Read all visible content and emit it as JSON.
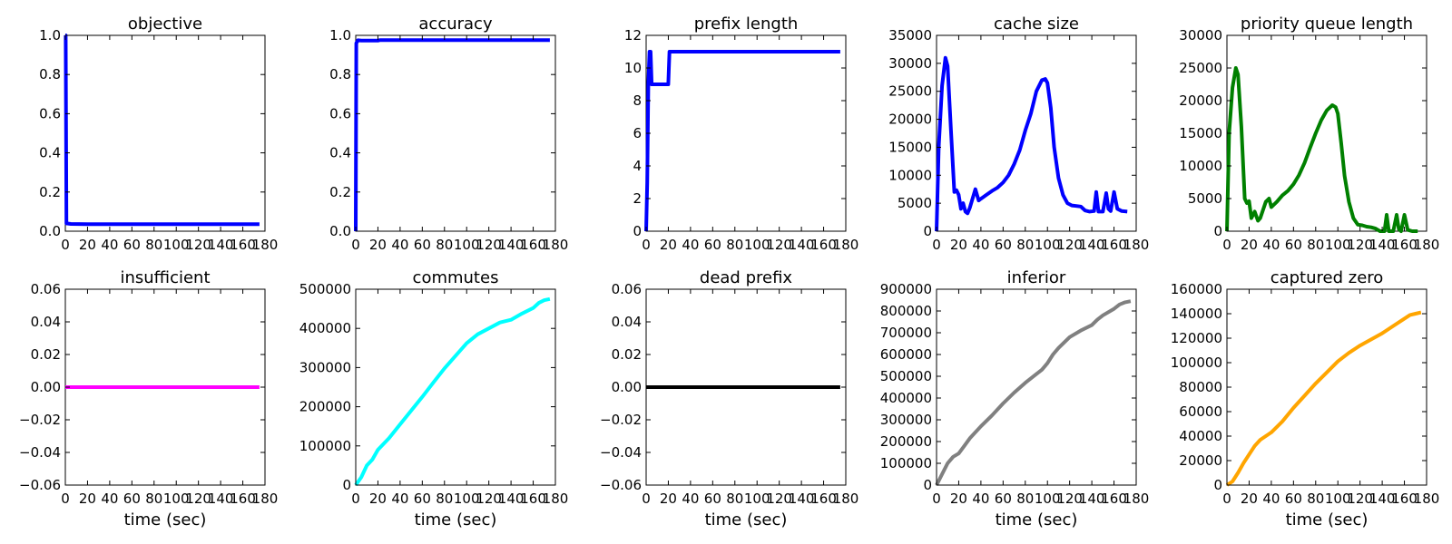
{
  "chart_data": [
    {
      "type": "line",
      "title": "objective",
      "xlabel": "",
      "ylabel": "",
      "xlim": [
        0,
        180
      ],
      "ylim": [
        0,
        1.0
      ],
      "xticks": [
        "0",
        "20",
        "40",
        "60",
        "80",
        "100",
        "120",
        "140",
        "160",
        "180"
      ],
      "yticks": [
        "0.0",
        "0.2",
        "0.4",
        "0.6",
        "0.8",
        "1.0"
      ],
      "color": "#0000ff",
      "x": [
        0,
        0.3,
        1,
        5,
        20,
        60,
        120,
        175
      ],
      "y": [
        1.0,
        1.0,
        0.04,
        0.037,
        0.036,
        0.036,
        0.036,
        0.036
      ]
    },
    {
      "type": "line",
      "title": "accuracy",
      "xlabel": "",
      "ylabel": "",
      "xlim": [
        0,
        180
      ],
      "ylim": [
        0,
        1.0
      ],
      "xticks": [
        "0",
        "20",
        "40",
        "60",
        "80",
        "100",
        "120",
        "140",
        "160",
        "180"
      ],
      "yticks": [
        "0.0",
        "0.2",
        "0.4",
        "0.6",
        "0.8",
        "1.0"
      ],
      "color": "#0000ff",
      "x": [
        0,
        0.5,
        2,
        5,
        20,
        22,
        60,
        120,
        175
      ],
      "y": [
        0.0,
        0.96,
        0.975,
        0.973,
        0.973,
        0.976,
        0.976,
        0.976,
        0.976
      ],
      "grid": false
    },
    {
      "type": "line",
      "title": "prefix length",
      "xlabel": "",
      "ylabel": "",
      "xlim": [
        0,
        180
      ],
      "ylim": [
        0,
        12
      ],
      "xticks": [
        "0",
        "20",
        "40",
        "60",
        "80",
        "100",
        "120",
        "140",
        "160",
        "180"
      ],
      "yticks": [
        "0",
        "2",
        "4",
        "6",
        "8",
        "10",
        "12"
      ],
      "color": "#0000ff",
      "x": [
        0,
        1,
        2,
        3,
        4,
        5,
        6,
        10,
        20,
        21,
        22,
        60,
        120,
        175
      ],
      "y": [
        0,
        3,
        9,
        11,
        11,
        9,
        9,
        9,
        9,
        11,
        11,
        11,
        11,
        11
      ]
    },
    {
      "type": "line",
      "title": "cache size",
      "xlabel": "",
      "ylabel": "",
      "xlim": [
        0,
        180
      ],
      "ylim": [
        0,
        35000
      ],
      "xticks": [
        "0",
        "20",
        "40",
        "60",
        "80",
        "100",
        "120",
        "140",
        "160",
        "180"
      ],
      "yticks": [
        "0",
        "5000",
        "10000",
        "15000",
        "20000",
        "25000",
        "30000",
        "35000"
      ],
      "color": "#0000ff",
      "x": [
        0,
        2,
        5,
        8,
        10,
        13,
        16,
        18,
        20,
        22,
        24,
        26,
        28,
        30,
        35,
        38,
        40,
        45,
        50,
        55,
        60,
        65,
        70,
        75,
        80,
        85,
        90,
        95,
        98,
        100,
        103,
        106,
        110,
        114,
        118,
        122,
        126,
        130,
        134,
        138,
        142,
        144,
        146,
        150,
        153,
        155,
        157,
        160,
        163,
        167,
        172
      ],
      "y": [
        0,
        15000,
        26000,
        31000,
        29500,
        18000,
        7000,
        7300,
        6500,
        4000,
        5000,
        3500,
        3200,
        4200,
        7500,
        5500,
        5800,
        6500,
        7200,
        7800,
        8700,
        10000,
        12000,
        14500,
        18000,
        21000,
        25000,
        27000,
        27200,
        26500,
        22000,
        15000,
        9500,
        6500,
        5000,
        4600,
        4500,
        4400,
        3700,
        3500,
        3600,
        7000,
        3500,
        3500,
        6800,
        4000,
        3600,
        7000,
        4000,
        3600,
        3500
      ]
    },
    {
      "type": "line",
      "title": "priority queue length",
      "xlabel": "",
      "ylabel": "",
      "xlim": [
        0,
        180
      ],
      "ylim": [
        0,
        30000
      ],
      "xticks": [
        "0",
        "20",
        "40",
        "60",
        "80",
        "100",
        "120",
        "140",
        "160",
        "180"
      ],
      "yticks": [
        "0",
        "5000",
        "10000",
        "15000",
        "20000",
        "25000",
        "30000"
      ],
      "color": "#008000",
      "x": [
        0,
        2,
        5,
        8,
        10,
        13,
        16,
        18,
        20,
        22,
        25,
        28,
        30,
        35,
        38,
        40,
        45,
        50,
        55,
        60,
        65,
        70,
        75,
        80,
        85,
        90,
        95,
        98,
        100,
        103,
        106,
        110,
        114,
        118,
        122,
        126,
        130,
        134,
        138,
        142,
        144,
        146,
        150,
        153,
        155,
        157,
        160,
        163,
        167,
        172
      ],
      "y": [
        0,
        15000,
        22000,
        25000,
        24000,
        16000,
        5000,
        4300,
        4600,
        2000,
        3000,
        1600,
        2000,
        4500,
        5000,
        3700,
        4500,
        5500,
        6200,
        7200,
        8600,
        10500,
        12800,
        15000,
        17000,
        18500,
        19300,
        19000,
        18000,
        13500,
        8500,
        4500,
        2000,
        1000,
        900,
        700,
        600,
        400,
        0,
        0,
        2500,
        0,
        0,
        2500,
        300,
        0,
        2500,
        200,
        0,
        0
      ]
    },
    {
      "type": "line",
      "title": "insufficient",
      "xlabel": "time (sec)",
      "ylabel": "",
      "xlim": [
        0,
        180
      ],
      "ylim": [
        -0.06,
        0.06
      ],
      "xticks": [
        "0",
        "20",
        "40",
        "60",
        "80",
        "100",
        "120",
        "140",
        "160",
        "180"
      ],
      "yticks": [
        "−0.06",
        "−0.04",
        "−0.02",
        "0.00",
        "0.02",
        "0.04",
        "0.06"
      ],
      "color": "#ff00ff",
      "x": [
        0,
        175
      ],
      "y": [
        0,
        0
      ]
    },
    {
      "type": "line",
      "title": "commutes",
      "xlabel": "time (sec)",
      "ylabel": "",
      "xlim": [
        0,
        180
      ],
      "ylim": [
        0,
        500000
      ],
      "xticks": [
        "0",
        "20",
        "40",
        "60",
        "80",
        "100",
        "120",
        "140",
        "160",
        "180"
      ],
      "yticks": [
        "0",
        "100000",
        "200000",
        "300000",
        "400000",
        "500000"
      ],
      "color": "#00ffff",
      "x": [
        0,
        5,
        10,
        15,
        20,
        25,
        30,
        40,
        50,
        60,
        70,
        80,
        90,
        100,
        110,
        120,
        130,
        140,
        150,
        160,
        165,
        170,
        175
      ],
      "y": [
        0,
        20000,
        50000,
        65000,
        90000,
        105000,
        120000,
        155000,
        190000,
        225000,
        262000,
        298000,
        330000,
        362000,
        385000,
        400000,
        415000,
        422000,
        438000,
        452000,
        465000,
        472000,
        475000
      ]
    },
    {
      "type": "line",
      "title": "dead prefix",
      "xlabel": "time (sec)",
      "ylabel": "",
      "xlim": [
        0,
        180
      ],
      "ylim": [
        -0.06,
        0.06
      ],
      "xticks": [
        "0",
        "20",
        "40",
        "60",
        "80",
        "100",
        "120",
        "140",
        "160",
        "180"
      ],
      "yticks": [
        "−0.06",
        "−0.04",
        "−0.02",
        "0.00",
        "0.02",
        "0.04",
        "0.06"
      ],
      "color": "#000000",
      "x": [
        0,
        175
      ],
      "y": [
        0,
        0
      ]
    },
    {
      "type": "line",
      "title": "inferior",
      "xlabel": "time (sec)",
      "ylabel": "",
      "xlim": [
        0,
        180
      ],
      "ylim": [
        0,
        900000
      ],
      "xticks": [
        "0",
        "20",
        "40",
        "60",
        "80",
        "100",
        "120",
        "140",
        "160",
        "180"
      ],
      "yticks": [
        "0",
        "100000",
        "200000",
        "300000",
        "400000",
        "500000",
        "600000",
        "700000",
        "800000",
        "900000"
      ],
      "color": "#808080",
      "x": [
        0,
        5,
        10,
        15,
        20,
        25,
        30,
        40,
        50,
        60,
        70,
        80,
        90,
        95,
        100,
        105,
        110,
        120,
        130,
        140,
        145,
        150,
        160,
        165,
        170,
        175
      ],
      "y": [
        0,
        50000,
        100000,
        130000,
        145000,
        180000,
        215000,
        270000,
        320000,
        375000,
        425000,
        470000,
        510000,
        530000,
        560000,
        600000,
        630000,
        680000,
        710000,
        735000,
        760000,
        780000,
        810000,
        830000,
        840000,
        845000
      ]
    },
    {
      "type": "line",
      "title": "captured zero",
      "xlabel": "time (sec)",
      "ylabel": "",
      "xlim": [
        0,
        180
      ],
      "ylim": [
        0,
        160000
      ],
      "xticks": [
        "0",
        "20",
        "40",
        "60",
        "80",
        "100",
        "120",
        "140",
        "160",
        "180"
      ],
      "yticks": [
        "0",
        "20000",
        "40000",
        "60000",
        "80000",
        "100000",
        "120000",
        "140000",
        "160000"
      ],
      "color": "#ffa500",
      "x": [
        0,
        5,
        10,
        15,
        20,
        25,
        30,
        35,
        40,
        50,
        60,
        70,
        80,
        90,
        100,
        110,
        120,
        130,
        140,
        150,
        160,
        165,
        170,
        175
      ],
      "y": [
        0,
        3000,
        10000,
        18000,
        25000,
        32000,
        37000,
        40000,
        43000,
        52000,
        63000,
        73000,
        83000,
        92000,
        101000,
        108000,
        114000,
        119000,
        124000,
        130000,
        136000,
        139000,
        140000,
        141000
      ]
    }
  ]
}
